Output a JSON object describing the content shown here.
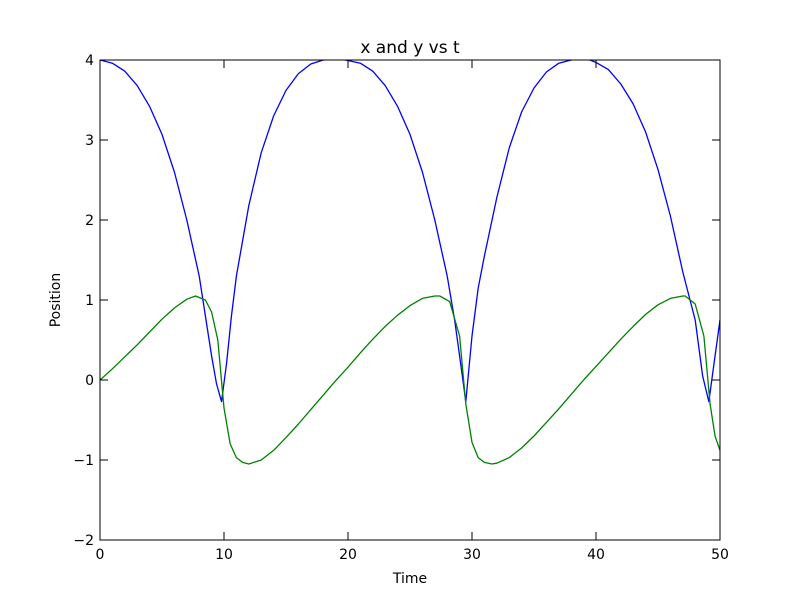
{
  "chart_data": {
    "type": "line",
    "title": "x and y vs t",
    "xlabel": "Time",
    "ylabel": "Position",
    "xlim": [
      0,
      50
    ],
    "ylim": [
      -2,
      4
    ],
    "xticks": [
      0,
      10,
      20,
      30,
      40,
      50
    ],
    "yticks": [
      -2,
      -1,
      0,
      1,
      2,
      3,
      4
    ],
    "xtick_labels": [
      "0",
      "10",
      "20",
      "30",
      "40",
      "50"
    ],
    "ytick_labels": [
      "−2",
      "−1",
      "0",
      "1",
      "2",
      "3",
      "4"
    ],
    "grid": false,
    "series": [
      {
        "color": "#0000ff",
        "x": [
          0,
          1,
          2,
          3,
          4,
          5,
          6,
          7,
          8,
          8.6,
          9,
          9.4,
          9.8,
          10.2,
          10.6,
          11,
          12,
          13,
          14,
          15,
          16,
          17,
          18,
          19,
          19.8,
          21,
          22,
          23,
          24,
          25,
          26,
          27,
          28,
          28.6,
          29,
          29.5,
          30,
          30.5,
          31,
          32,
          33,
          34,
          35,
          36,
          37,
          38,
          39,
          39.5,
          40,
          41,
          42,
          43,
          44,
          45,
          46,
          47,
          48,
          48.6,
          49.1,
          49.6,
          50
        ],
        "y": [
          4.0,
          3.96,
          3.86,
          3.68,
          3.42,
          3.07,
          2.6,
          2.0,
          1.3,
          0.7,
          0.3,
          -0.05,
          -0.27,
          0.2,
          0.8,
          1.3,
          2.18,
          2.84,
          3.3,
          3.62,
          3.83,
          3.95,
          4.0,
          4.01,
          4.0,
          3.96,
          3.86,
          3.68,
          3.42,
          3.07,
          2.6,
          2.0,
          1.3,
          0.75,
          0.3,
          -0.27,
          0.55,
          1.15,
          1.55,
          2.28,
          2.9,
          3.35,
          3.65,
          3.85,
          3.96,
          4.0,
          4.01,
          4.0,
          3.97,
          3.88,
          3.7,
          3.45,
          3.1,
          2.63,
          2.05,
          1.35,
          0.75,
          0.05,
          -0.27,
          0.3,
          0.75
        ]
      },
      {
        "color": "#008000",
        "x": [
          0,
          1,
          2,
          3,
          4,
          5,
          6,
          7,
          7.7,
          8.5,
          9,
          9.5,
          10,
          10.5,
          11,
          11.5,
          12,
          13,
          14,
          15,
          16,
          17,
          18,
          19,
          20,
          21,
          22,
          23,
          24,
          25,
          26,
          27,
          27.4,
          28.2,
          29,
          29.5,
          30,
          30.5,
          31,
          31.6,
          32,
          33,
          34,
          35,
          36,
          37,
          38,
          39,
          40,
          41,
          42,
          43,
          44,
          45,
          46,
          47,
          47.2,
          48,
          48.7,
          49.2,
          49.6,
          50
        ],
        "y": [
          0.0,
          0.14,
          0.29,
          0.44,
          0.6,
          0.76,
          0.9,
          1.01,
          1.05,
          1.0,
          0.85,
          0.5,
          -0.35,
          -0.8,
          -0.97,
          -1.03,
          -1.05,
          -1.0,
          -0.88,
          -0.72,
          -0.55,
          -0.37,
          -0.19,
          -0.01,
          0.16,
          0.34,
          0.51,
          0.67,
          0.81,
          0.93,
          1.02,
          1.05,
          1.05,
          0.98,
          0.55,
          -0.3,
          -0.78,
          -0.97,
          -1.03,
          -1.05,
          -1.04,
          -0.97,
          -0.85,
          -0.7,
          -0.53,
          -0.36,
          -0.18,
          0.0,
          0.17,
          0.34,
          0.51,
          0.67,
          0.82,
          0.94,
          1.02,
          1.05,
          1.05,
          0.95,
          0.55,
          -0.3,
          -0.7,
          -0.88
        ]
      }
    ]
  }
}
